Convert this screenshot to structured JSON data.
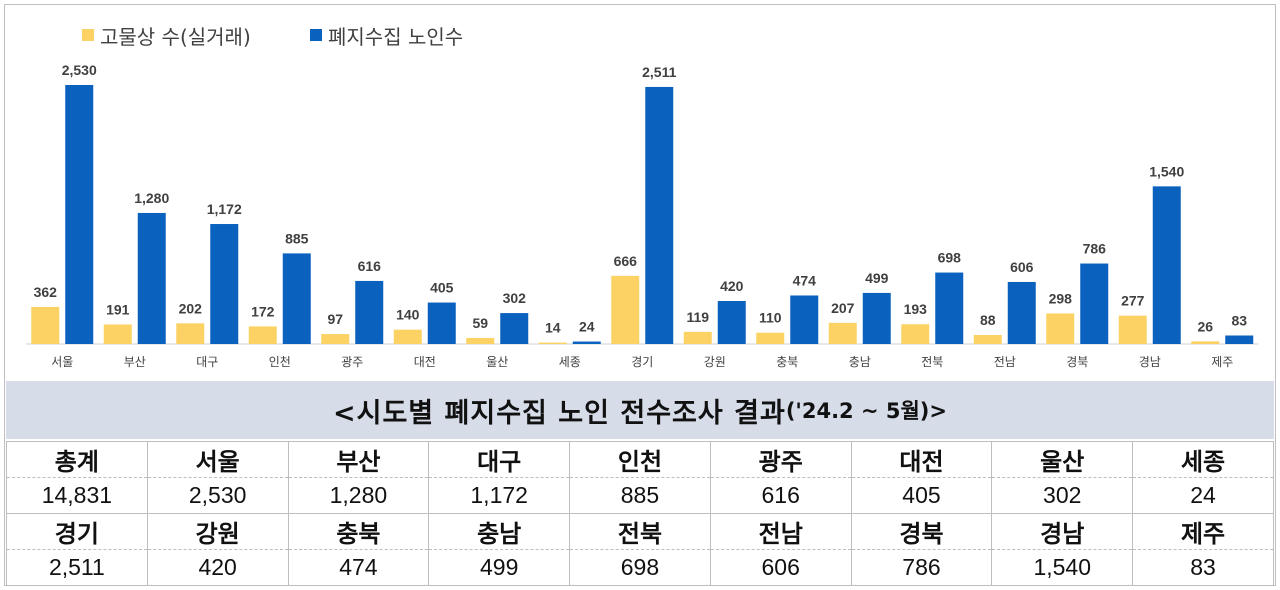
{
  "legend": [
    {
      "label": "고물상 수(실거래)",
      "color": "#fcd264"
    },
    {
      "label": "폐지수집 노인수",
      "color": "#0a62be"
    }
  ],
  "chart_data": {
    "type": "bar",
    "categories": [
      "서울",
      "부산",
      "대구",
      "인천",
      "광주",
      "대전",
      "울산",
      "세종",
      "경기",
      "강원",
      "충북",
      "충남",
      "전북",
      "전남",
      "경북",
      "경남",
      "제주"
    ],
    "series": [
      {
        "name": "고물상 수(실거래)",
        "color": "#fcd264",
        "values": [
          362,
          191,
          202,
          172,
          97,
          140,
          59,
          14,
          666,
          119,
          110,
          207,
          193,
          88,
          298,
          277,
          26
        ]
      },
      {
        "name": "폐지수집 노인수",
        "color": "#0a62be",
        "values": [
          2530,
          1280,
          1172,
          885,
          616,
          405,
          302,
          24,
          2511,
          420,
          474,
          499,
          698,
          606,
          786,
          1540,
          83
        ]
      }
    ],
    "value_labels": {
      "series0": [
        "362",
        "191",
        "202",
        "172",
        "97",
        "140",
        "59",
        "14",
        "666",
        "119",
        "110",
        "207",
        "193",
        "88",
        "298",
        "277",
        "26"
      ],
      "series1": [
        "2,530",
        "1,280",
        "1,172",
        "885",
        "616",
        "405",
        "302",
        "24",
        "2,511",
        "420",
        "474",
        "499",
        "698",
        "606",
        "786",
        "1,540",
        "83"
      ]
    },
    "ylim": [
      0,
      2600
    ],
    "grid": false,
    "legend_position": "top-left"
  },
  "caption": {
    "main": "<시도별 폐지수집 노인 전수조사 결과",
    "sub": "('24.2 ~ 5월)>"
  },
  "summary_table": {
    "rows": [
      {
        "headers": [
          "총계",
          "서울",
          "부산",
          "대구",
          "인천",
          "광주",
          "대전",
          "울산",
          "세종"
        ],
        "values": [
          "14,831",
          "2,530",
          "1,280",
          "1,172",
          "885",
          "616",
          "405",
          "302",
          "24"
        ]
      },
      {
        "headers": [
          "경기",
          "강원",
          "충북",
          "충남",
          "전북",
          "전남",
          "경북",
          "경남",
          "제주"
        ],
        "values": [
          "2,511",
          "420",
          "474",
          "499",
          "698",
          "606",
          "786",
          "1,540",
          "83"
        ]
      }
    ]
  }
}
